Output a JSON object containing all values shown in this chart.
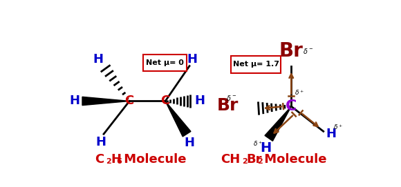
{
  "bg_color": "#ffffff",
  "red": "#cc0000",
  "blue": "#0000cc",
  "purple": "#9400D3",
  "darkred": "#8B0000",
  "brown": "#8B4513",
  "black": "#000000",
  "box_mu_left": "Net μ= 0",
  "box_mu_right": "Net μ= 1.7",
  "title_left_parts": [
    "C",
    "2",
    "H",
    "6",
    " Molecule"
  ],
  "title_right_parts": [
    "CH",
    "2",
    "Br",
    "2",
    " Molecule"
  ]
}
